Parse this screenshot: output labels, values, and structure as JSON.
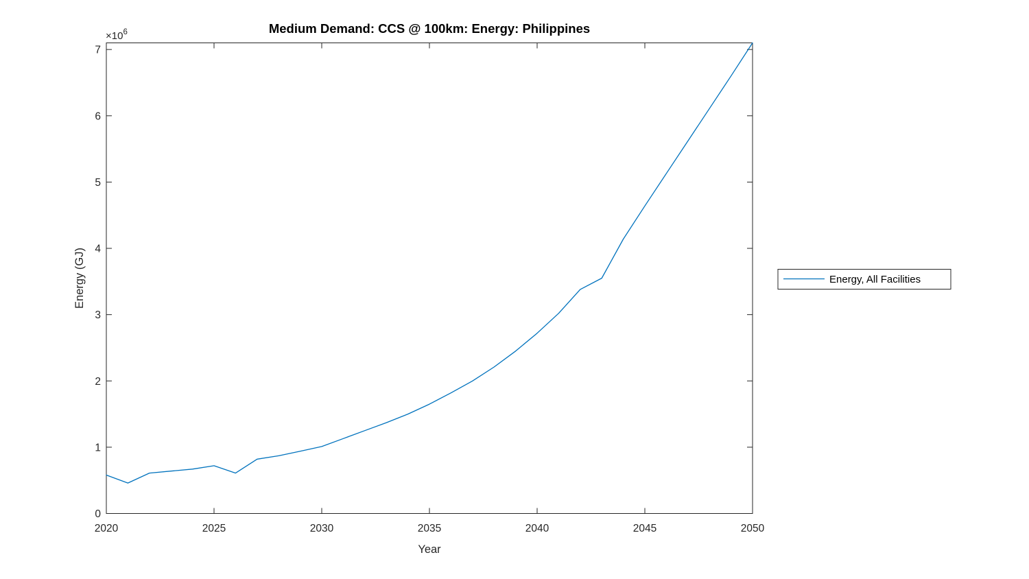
{
  "chart_data": {
    "type": "line",
    "title": "Medium Demand: CCS @ 100km: Energy: Philippines",
    "xlabel": "Year",
    "ylabel": "Energy (GJ)",
    "y_exponent_base": "×10",
    "y_exponent_power": "6",
    "x": [
      2020,
      2021,
      2022,
      2023,
      2024,
      2025,
      2026,
      2027,
      2028,
      2029,
      2030,
      2031,
      2032,
      2033,
      2034,
      2035,
      2036,
      2037,
      2038,
      2039,
      2040,
      2041,
      2042,
      2043,
      2044,
      2045,
      2046,
      2047,
      2048,
      2049,
      2050
    ],
    "series": [
      {
        "name": "Energy, All Facilities",
        "color": "#0072bd",
        "values": [
          580000,
          460000,
          610000,
          640000,
          670000,
          720000,
          610000,
          820000,
          870000,
          940000,
          1010000,
          1130000,
          1250000,
          1370000,
          1500000,
          1650000,
          1820000,
          2000000,
          2210000,
          2450000,
          2720000,
          3020000,
          3380000,
          3550000,
          4140000,
          4640000,
          5130000,
          5620000,
          6110000,
          6600000,
          7100000
        ]
      }
    ],
    "xlim": [
      2020,
      2050
    ],
    "ylim": [
      0,
      7100000
    ],
    "x_ticks": [
      2020,
      2025,
      2030,
      2035,
      2040,
      2045,
      2050
    ],
    "y_ticks": [
      0,
      1000000,
      2000000,
      3000000,
      4000000,
      5000000,
      6000000,
      7000000
    ],
    "y_tick_labels": [
      "0",
      "1",
      "2",
      "3",
      "4",
      "5",
      "6",
      "7"
    ],
    "grid": false,
    "box": true,
    "tick_direction": "in",
    "axis_color": "#262626",
    "background_color": "#ffffff",
    "legend_position": "right-outside"
  }
}
